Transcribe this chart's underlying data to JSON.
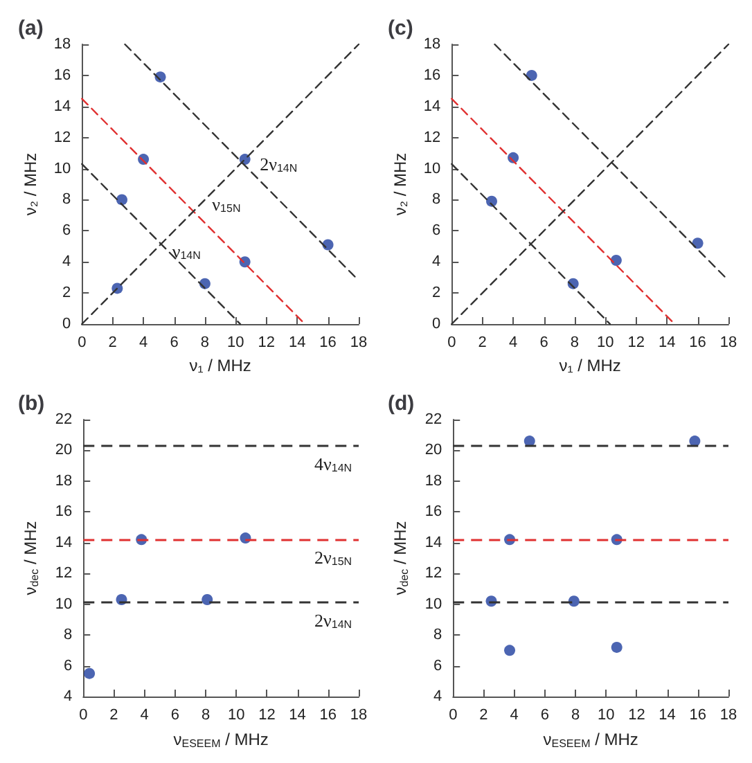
{
  "chart_data": [
    {
      "type": "scatter",
      "title": "(a)",
      "xlabel": "ν₁ / MHz",
      "ylabel": "ν₂ / MHz",
      "xlim": [
        0,
        18
      ],
      "ylim": [
        0,
        18
      ],
      "xticks": [
        0,
        2,
        4,
        6,
        8,
        10,
        12,
        14,
        16,
        18
      ],
      "yticks": [
        0,
        2,
        4,
        6,
        8,
        10,
        12,
        14,
        16,
        18
      ],
      "marker": "circle",
      "series": [
        {
          "type": "scatter",
          "color": "#1f3f9f",
          "x": [
            5.1,
            4,
            10.6,
            2.6,
            2.3,
            8,
            10.6,
            16
          ],
          "values": [
            15.9,
            10.6,
            10.6,
            8,
            2.3,
            2.6,
            4,
            5.1
          ]
        },
        {
          "type": "line",
          "color": "#333333",
          "line_style": "dashed",
          "marker": "none",
          "x": [
            0,
            10.3
          ],
          "values": [
            10.3,
            0
          ]
        },
        {
          "type": "line",
          "color": "#e03030",
          "line_style": "dashed",
          "marker": "none",
          "x": [
            0,
            14.5
          ],
          "values": [
            14.5,
            0
          ]
        },
        {
          "type": "line",
          "color": "#333333",
          "line_style": "dashed",
          "marker": "none",
          "x": [
            2.8,
            18
          ],
          "values": [
            18,
            2.8
          ]
        },
        {
          "type": "line",
          "color": "#333333",
          "line_style": "dashed",
          "marker": "none",
          "x": [
            0,
            18
          ],
          "values": [
            0,
            18
          ]
        }
      ],
      "annotations": [
        {
          "text": "2ν$_{14N}$",
          "x": 11.3,
          "y": 10.3
        },
        {
          "text": "ν$_{15N}$",
          "x": 8.2,
          "y": 7.7
        },
        {
          "text": "ν$_{14N}$",
          "x": 5.6,
          "y": 4.7
        }
      ]
    },
    {
      "type": "scatter",
      "title": "(c)",
      "xlabel": "ν₁ / MHz",
      "ylabel": "ν₂ / MHz",
      "xlim": [
        0,
        18
      ],
      "ylim": [
        0,
        18
      ],
      "xticks": [
        0,
        2,
        4,
        6,
        8,
        10,
        12,
        14,
        16,
        18
      ],
      "yticks": [
        0,
        2,
        4,
        6,
        8,
        10,
        12,
        14,
        16,
        18
      ],
      "marker": "circle",
      "series": [
        {
          "type": "scatter",
          "color": "#1f3f9f",
          "x": [
            5.2,
            4,
            2.6,
            7.9,
            10.7,
            16
          ],
          "values": [
            16,
            10.7,
            7.9,
            2.6,
            4.1,
            5.2
          ]
        },
        {
          "type": "line",
          "color": "#333333",
          "line_style": "dashed",
          "marker": "none",
          "x": [
            0,
            10.3
          ],
          "values": [
            10.3,
            0
          ]
        },
        {
          "type": "line",
          "color": "#e03030",
          "line_style": "dashed",
          "marker": "none",
          "x": [
            0,
            14.5
          ],
          "values": [
            14.5,
            0
          ]
        },
        {
          "type": "line",
          "color": "#333333",
          "line_style": "dashed",
          "marker": "none",
          "x": [
            2.8,
            18
          ],
          "values": [
            18,
            2.8
          ]
        },
        {
          "type": "line",
          "color": "#333333",
          "line_style": "dashed",
          "marker": "none",
          "x": [
            0,
            18
          ],
          "values": [
            0,
            18
          ]
        }
      ]
    },
    {
      "type": "scatter",
      "title": "(b)",
      "xlabel": "ν$_{ESEEM}$ / MHz",
      "ylabel": "ν$_{dec}$ / MHz",
      "xlim": [
        0,
        18
      ],
      "ylim": [
        4,
        22
      ],
      "xticks": [
        0,
        2,
        4,
        6,
        8,
        10,
        12,
        14,
        16,
        18
      ],
      "yticks": [
        4,
        6,
        8,
        10,
        12,
        14,
        16,
        18,
        20,
        22
      ],
      "marker": "circle",
      "series": [
        {
          "type": "scatter",
          "color": "#1f3f9f",
          "x": [
            3.8,
            10.6,
            2.5,
            8.1,
            0.4
          ],
          "values": [
            14.2,
            14.3,
            10.3,
            10.3,
            5.5
          ]
        }
      ],
      "ref_lines": [
        {
          "axis": "y",
          "value": 20.3,
          "label": "4ν$_{14N}$",
          "color": "#333333"
        },
        {
          "axis": "y",
          "value": 14.2,
          "label": "2ν$_{15N}$",
          "color": "#e03030"
        },
        {
          "axis": "y",
          "value": 10.1,
          "label": "2ν$_{14N}$",
          "color": "#333333"
        }
      ]
    },
    {
      "type": "scatter",
      "title": "(d)",
      "xlabel": "ν$_{ESEEM}$ / MHz",
      "ylabel": "ν$_{dec}$ / MHz",
      "xlim": [
        0,
        18
      ],
      "ylim": [
        4,
        22
      ],
      "xticks": [
        0,
        2,
        4,
        6,
        8,
        10,
        12,
        14,
        16,
        18
      ],
      "yticks": [
        4,
        6,
        8,
        10,
        12,
        14,
        16,
        18,
        20,
        22
      ],
      "marker": "circle",
      "series": [
        {
          "type": "scatter",
          "color": "#1f3f9f",
          "x": [
            5,
            15.8,
            3.7,
            10.7,
            2.5,
            7.9,
            3.7,
            10.7
          ],
          "values": [
            20.6,
            20.6,
            14.2,
            14.2,
            10.2,
            10.2,
            7,
            7.2
          ]
        }
      ],
      "ref_lines": [
        {
          "axis": "y",
          "value": 20.3,
          "color": "#333333"
        },
        {
          "axis": "y",
          "value": 14.2,
          "color": "#e03030"
        },
        {
          "axis": "y",
          "value": 10.1,
          "color": "#333333"
        }
      ]
    }
  ]
}
